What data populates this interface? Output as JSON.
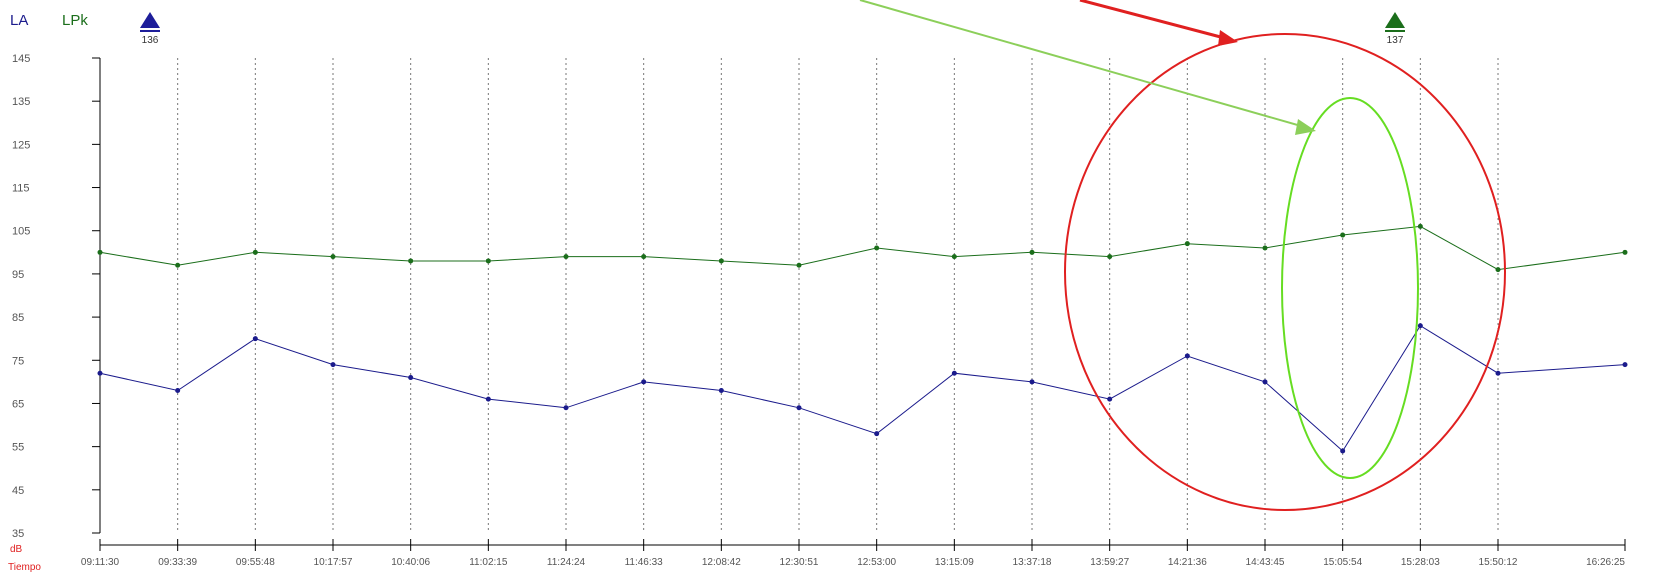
{
  "legend": {
    "la": "LA",
    "lpk": "LPk"
  },
  "markers": [
    {
      "label": "136",
      "time": "09:11:30",
      "color": "#1e1e9a"
    },
    {
      "label": "137",
      "time": "15:19:00",
      "color": "#1b6e1b"
    }
  ],
  "axis_notes": {
    "unit": "dB",
    "time": "Tiempo"
  },
  "colors": {
    "la": "#1b1b8c",
    "lpk": "#1b6e1b",
    "red_circle": "#e02020",
    "green_ellipse": "#66dd22",
    "red_arrow": "#e02020",
    "green_arrow": "#8ccf5a"
  },
  "chart_data": {
    "type": "line",
    "title": "",
    "xlabel": "Tiempo",
    "ylabel": "dB",
    "ylim": [
      35,
      145
    ],
    "yticks": [
      "145",
      "135",
      "125",
      "115",
      "105",
      "95",
      "85",
      "75",
      "65",
      "55",
      "45",
      "35"
    ],
    "x_range": [
      "09:11:30",
      "16:26:25"
    ],
    "x": [
      "09:11:30",
      "09:33:39",
      "09:55:48",
      "10:17:57",
      "10:40:06",
      "11:02:15",
      "11:24:24",
      "11:46:33",
      "12:08:42",
      "12:30:51",
      "12:53:00",
      "13:15:09",
      "13:37:18",
      "13:59:27",
      "14:21:36",
      "14:43:45",
      "15:05:54",
      "15:28:03",
      "15:50:12",
      "16:26:25"
    ],
    "series": [
      {
        "name": "LA",
        "values": [
          72,
          68,
          80,
          74,
          71,
          66,
          64,
          70,
          68,
          64,
          58,
          72,
          70,
          66,
          76,
          70,
          54,
          83,
          72,
          74
        ]
      },
      {
        "name": "LPk",
        "values": [
          100,
          97,
          100,
          99,
          98,
          98,
          99,
          99,
          98,
          97,
          101,
          99,
          100,
          99,
          102,
          101,
          104,
          106,
          96,
          100
        ]
      }
    ]
  }
}
